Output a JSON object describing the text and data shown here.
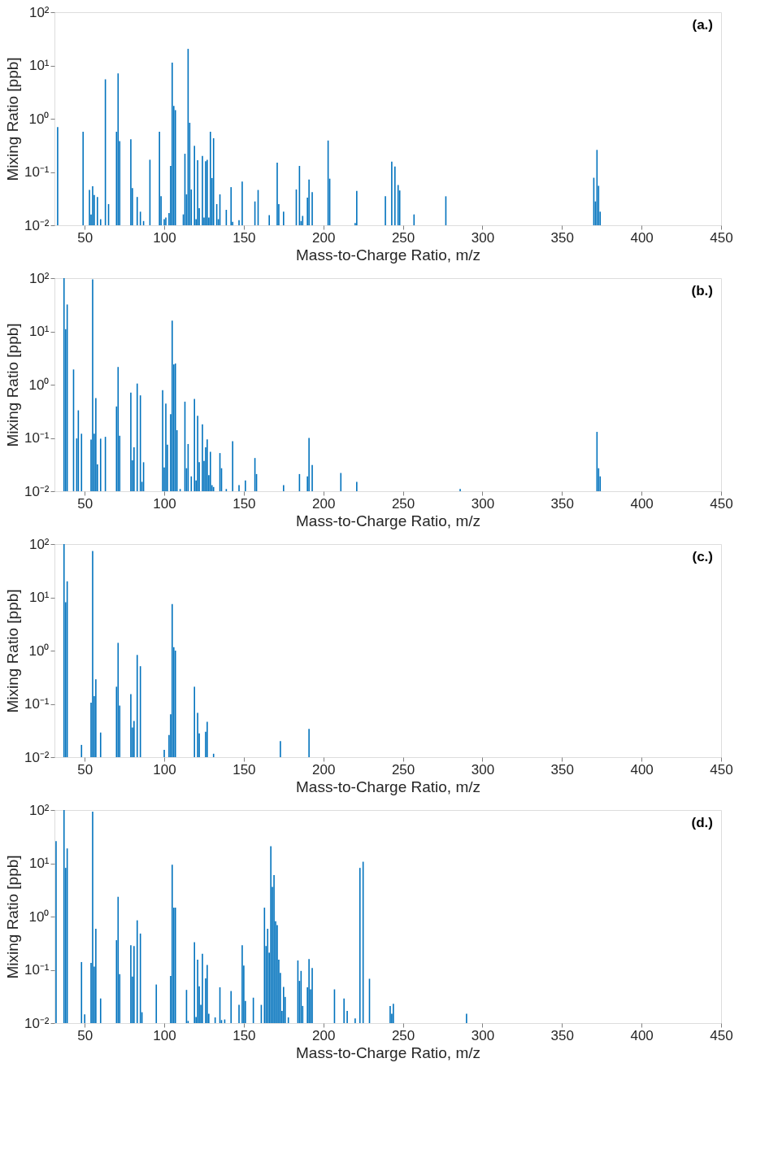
{
  "chart_data": [
    {
      "type": "bar",
      "annotations": [
        "(a.)"
      ],
      "xlabel": "Mass-to-Charge Ratio, m/z",
      "ylabel": "Mixing Ratio [ppb]",
      "log": true,
      "grid": false,
      "color": "#0072bd",
      "x": [
        33,
        49,
        53,
        54,
        55,
        56,
        58,
        60,
        63,
        65,
        70,
        71,
        72,
        79,
        80,
        83,
        85,
        87,
        91,
        97,
        98,
        100,
        101,
        103,
        104,
        105,
        106,
        107,
        112,
        113,
        114,
        115,
        116,
        117,
        119,
        120,
        121,
        122,
        124,
        125,
        126,
        127,
        128,
        129,
        130,
        131,
        133,
        134,
        135,
        139,
        142,
        143,
        147,
        149,
        157,
        159,
        166,
        171,
        172,
        175,
        183,
        185,
        186,
        187,
        190,
        191,
        193,
        203,
        204,
        220,
        221,
        239,
        243,
        245,
        247,
        248,
        257,
        277,
        370,
        371,
        372,
        373,
        374
      ],
      "values": [
        0.7,
        0.57,
        0.046,
        0.016,
        0.054,
        0.037,
        0.034,
        0.013,
        5.5,
        0.025,
        0.57,
        7.1,
        0.38,
        0.41,
        0.05,
        0.034,
        0.018,
        0.012,
        0.17,
        0.57,
        0.035,
        0.013,
        0.014,
        0.017,
        0.13,
        11.3,
        1.74,
        1.45,
        0.016,
        0.22,
        0.038,
        20.5,
        0.84,
        0.047,
        0.31,
        0.013,
        0.166,
        0.021,
        0.2,
        0.014,
        0.16,
        0.17,
        0.014,
        0.57,
        0.077,
        0.43,
        0.025,
        0.013,
        0.038,
        0.0195,
        0.052,
        0.0116,
        0.0125,
        0.066,
        0.028,
        0.046,
        0.0155,
        0.15,
        0.025,
        0.018,
        0.047,
        0.13,
        0.012,
        0.015,
        0.033,
        0.072,
        0.042,
        0.39,
        0.075,
        0.011,
        0.044,
        0.035,
        0.157,
        0.127,
        0.057,
        0.045,
        0.016,
        0.035,
        0.078,
        0.028,
        0.26,
        0.055,
        0.018
      ],
      "xlim": [
        31,
        450
      ],
      "xticks": [
        50,
        100,
        150,
        200,
        250,
        300,
        350,
        400,
        450
      ],
      "ylim": [
        0.01,
        100
      ],
      "yticks": [
        {
          "value": 0.01,
          "label": "10⁻²"
        },
        {
          "value": 0.1,
          "label": "10⁻¹"
        },
        {
          "value": 1,
          "label": "10⁰"
        },
        {
          "value": 10,
          "label": "10¹"
        },
        {
          "value": 100,
          "label": "10²"
        }
      ]
    },
    {
      "type": "bar",
      "annotations": [
        "(b.)"
      ],
      "xlabel": "Mass-to-Charge Ratio, m/z",
      "ylabel": "Mixing Ratio [ppb]",
      "log": true,
      "grid": false,
      "color": "#0072bd",
      "x": [
        37,
        38,
        39,
        43,
        45,
        46,
        48,
        54,
        55,
        56,
        57,
        58,
        60,
        63,
        70,
        71,
        72,
        79,
        80,
        81,
        83,
        85,
        86,
        87,
        99,
        100,
        101,
        102,
        104,
        105,
        106,
        107,
        108,
        110,
        113,
        114,
        115,
        117,
        119,
        120,
        121,
        122,
        124,
        125,
        126,
        127,
        128,
        129,
        130,
        131,
        135,
        136,
        139,
        143,
        147,
        151,
        157,
        158,
        175,
        185,
        190,
        191,
        193,
        211,
        221,
        286,
        372,
        373,
        374
      ],
      "values": [
        100,
        11,
        32,
        1.93,
        0.098,
        0.33,
        0.12,
        0.093,
        95,
        0.12,
        0.56,
        0.032,
        0.097,
        0.105,
        0.39,
        2.15,
        0.11,
        0.71,
        0.038,
        0.067,
        1.05,
        0.63,
        0.015,
        0.035,
        0.79,
        0.028,
        0.44,
        0.075,
        0.28,
        16,
        2.4,
        2.5,
        0.14,
        0.011,
        0.48,
        0.027,
        0.077,
        0.019,
        0.54,
        0.016,
        0.26,
        0.035,
        0.18,
        0.037,
        0.067,
        0.094,
        0.02,
        0.055,
        0.013,
        0.012,
        0.052,
        0.027,
        0.011,
        0.087,
        0.013,
        0.016,
        0.042,
        0.021,
        0.013,
        0.021,
        0.019,
        0.1,
        0.031,
        0.022,
        0.015,
        0.011,
        0.13,
        0.027,
        0.019
      ],
      "xlim": [
        31,
        450
      ],
      "xticks": [
        50,
        100,
        150,
        200,
        250,
        300,
        350,
        400,
        450
      ],
      "ylim": [
        0.01,
        100
      ],
      "yticks": [
        {
          "value": 0.01,
          "label": "10⁻²"
        },
        {
          "value": 0.1,
          "label": "10⁻¹"
        },
        {
          "value": 1,
          "label": "10⁰"
        },
        {
          "value": 10,
          "label": "10¹"
        },
        {
          "value": 100,
          "label": "10²"
        }
      ]
    },
    {
      "type": "bar",
      "annotations": [
        "(c.)"
      ],
      "xlabel": "Mass-to-Charge Ratio, m/z",
      "ylabel": "Mixing Ratio [ppb]",
      "log": true,
      "grid": false,
      "color": "#0072bd",
      "x": [
        37,
        38,
        39,
        48,
        54,
        55,
        56,
        57,
        60,
        70,
        71,
        72,
        79,
        80,
        81,
        83,
        85,
        100,
        103,
        104,
        105,
        106,
        107,
        119,
        121,
        122,
        126,
        127,
        131,
        173,
        191
      ],
      "values": [
        100,
        8.1,
        20,
        0.017,
        0.105,
        74,
        0.14,
        0.29,
        0.029,
        0.21,
        1.4,
        0.093,
        0.153,
        0.036,
        0.048,
        0.83,
        0.51,
        0.0137,
        0.026,
        0.064,
        7.5,
        1.16,
        1.0,
        0.21,
        0.068,
        0.028,
        0.03,
        0.046,
        0.0116,
        0.02,
        0.034
      ],
      "xlim": [
        31,
        450
      ],
      "xticks": [
        50,
        100,
        150,
        200,
        250,
        300,
        350,
        400,
        450
      ],
      "ylim": [
        0.01,
        100
      ],
      "yticks": [
        {
          "value": 0.01,
          "label": "10⁻²"
        },
        {
          "value": 0.1,
          "label": "10⁻¹"
        },
        {
          "value": 1,
          "label": "10⁰"
        },
        {
          "value": 10,
          "label": "10¹"
        },
        {
          "value": 100,
          "label": "10²"
        }
      ]
    },
    {
      "type": "bar",
      "annotations": [
        "(d.)"
      ],
      "xlabel": "Mass-to-Charge Ratio, m/z",
      "ylabel": "Mixing Ratio [ppb]",
      "log": true,
      "grid": false,
      "color": "#0072bd",
      "x": [
        32,
        37,
        38,
        39,
        48,
        50,
        54,
        55,
        56,
        57,
        60,
        70,
        71,
        72,
        79,
        80,
        81,
        83,
        85,
        86,
        95,
        104,
        105,
        106,
        107,
        114,
        115,
        119,
        120,
        121,
        122,
        123,
        124,
        126,
        127,
        128,
        132,
        135,
        136,
        138,
        142,
        147,
        149,
        150,
        151,
        156,
        161,
        163,
        164,
        165,
        166,
        167,
        168,
        169,
        170,
        171,
        172,
        173,
        174,
        175,
        176,
        178,
        184,
        185,
        186,
        187,
        190,
        191,
        192,
        193,
        207,
        213,
        215,
        220,
        223,
        225,
        229,
        242,
        243,
        244,
        290
      ],
      "values": [
        26,
        100,
        8.2,
        19,
        0.14,
        0.0146,
        0.135,
        93,
        0.115,
        0.59,
        0.029,
        0.36,
        2.35,
        0.083,
        0.29,
        0.075,
        0.28,
        0.85,
        0.48,
        0.016,
        0.053,
        0.077,
        9.4,
        1.47,
        1.47,
        0.042,
        0.011,
        0.33,
        0.013,
        0.155,
        0.049,
        0.022,
        0.2,
        0.069,
        0.123,
        0.015,
        0.0128,
        0.047,
        0.0114,
        0.0117,
        0.04,
        0.022,
        0.29,
        0.12,
        0.026,
        0.03,
        0.022,
        1.47,
        0.28,
        0.59,
        0.21,
        21,
        3.6,
        6.0,
        0.82,
        0.69,
        0.155,
        0.088,
        0.017,
        0.048,
        0.031,
        0.0128,
        0.15,
        0.062,
        0.0955,
        0.021,
        0.047,
        0.16,
        0.043,
        0.108,
        0.043,
        0.029,
        0.017,
        0.0122,
        8.2,
        10.7,
        0.068,
        0.021,
        0.015,
        0.023,
        0.015
      ],
      "xlim": [
        31,
        450
      ],
      "xticks": [
        50,
        100,
        150,
        200,
        250,
        300,
        350,
        400,
        450
      ],
      "ylim": [
        0.01,
        100
      ],
      "yticks": [
        {
          "value": 0.01,
          "label": "10⁻²"
        },
        {
          "value": 0.1,
          "label": "10⁻¹"
        },
        {
          "value": 1,
          "label": "10⁰"
        },
        {
          "value": 10,
          "label": "10¹"
        },
        {
          "value": 100,
          "label": "10²"
        }
      ]
    }
  ]
}
